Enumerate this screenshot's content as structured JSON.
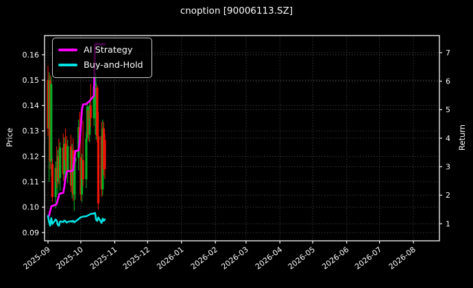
{
  "chart_data": {
    "type": "candlestick",
    "title": "cnoption [90006113.SZ]",
    "background": "#000000",
    "text_color": "#ffffff",
    "grid_color": "#3a3a3a",
    "spine_color": "#ffffff",
    "legend": {
      "position": "upper-left",
      "items": [
        {
          "label": "AI Strategy",
          "color": "#ff00ff"
        },
        {
          "label": "Buy-and-Hold",
          "color": "#00e1e1"
        }
      ]
    },
    "x_axis": {
      "start_date": "2025-09-01",
      "ticks": [
        "2025-09",
        "2025-10",
        "2025-11",
        "2025-12",
        "2026-01",
        "2026-02",
        "2026-03",
        "2026-04",
        "2026-05",
        "2026-06",
        "2026-07",
        "2026-08"
      ]
    },
    "left_axis": {
      "label": "Price",
      "ticks": [
        "0.09",
        "0.10",
        "0.11",
        "0.12",
        "0.13",
        "0.14",
        "0.15",
        "0.16"
      ],
      "range": [
        0.0868,
        0.1633
      ]
    },
    "right_axis": {
      "label": "Return",
      "ticks": [
        "1",
        "2",
        "3",
        "4",
        "5",
        "6",
        "7"
      ],
      "range": [
        0.4,
        7.6
      ]
    },
    "candles": {
      "up_color": "#00b025",
      "down_color": "#ee1509",
      "ohlc": [
        [
          "2025-09-01",
          0.15,
          0.1555,
          0.128,
          0.131
        ],
        [
          "2025-09-02",
          0.131,
          0.153,
          0.11,
          0.15
        ],
        [
          "2025-09-03",
          0.15,
          0.152,
          0.115,
          0.118
        ],
        [
          "2025-09-04",
          0.118,
          0.1515,
          0.112,
          0.1485
        ],
        [
          "2025-09-05",
          0.117,
          0.119,
          0.102,
          0.104
        ],
        [
          "2025-09-08",
          0.104,
          0.118,
          0.0995,
          0.1155
        ],
        [
          "2025-09-09",
          0.1155,
          0.124,
          0.1075,
          0.11
        ],
        [
          "2025-09-10",
          0.11,
          0.1225,
          0.105,
          0.12
        ],
        [
          "2025-09-11",
          0.12,
          0.127,
          0.109,
          0.1115
        ],
        [
          "2025-09-12",
          0.1115,
          0.1255,
          0.1065,
          0.1235
        ],
        [
          "2025-09-15",
          0.1235,
          0.129,
          0.1105,
          0.113
        ],
        [
          "2025-09-16",
          0.113,
          0.1275,
          0.108,
          0.125
        ],
        [
          "2025-09-17",
          0.125,
          0.131,
          0.116,
          0.1185
        ],
        [
          "2025-09-18",
          0.1185,
          0.128,
          0.1115,
          0.114
        ],
        [
          "2025-09-19",
          0.114,
          0.1265,
          0.1095,
          0.124
        ],
        [
          "2025-09-22",
          0.124,
          0.1285,
          0.106,
          0.1085
        ],
        [
          "2025-09-23",
          0.1085,
          0.125,
          0.1035,
          0.1225
        ],
        [
          "2025-09-24",
          0.1225,
          0.127,
          0.1025,
          0.105
        ],
        [
          "2025-09-25",
          0.105,
          0.1205,
          0.0985,
          0.118
        ],
        [
          "2025-09-26",
          0.118,
          0.122,
          0.103,
          0.1195
        ],
        [
          "2025-09-29",
          0.1195,
          0.1345,
          0.1145,
          0.1315
        ],
        [
          "2025-09-30",
          0.1315,
          0.1375,
          0.1235,
          0.126
        ],
        [
          "2025-10-01",
          0.1196,
          0.1285,
          0.1026,
          0.105
        ],
        [
          "2025-10-02",
          0.105,
          0.121,
          0.102,
          0.1185
        ],
        [
          "2025-10-03",
          0.1185,
          0.134,
          0.108,
          0.111
        ],
        [
          "2025-10-06",
          0.111,
          0.1295,
          0.1075,
          0.127
        ],
        [
          "2025-10-07",
          0.127,
          0.141,
          0.128,
          0.1395
        ],
        [
          "2025-10-08",
          0.138,
          0.1385,
          0.126,
          0.1285
        ],
        [
          "2025-10-09",
          0.1285,
          0.142,
          0.1255,
          0.14
        ],
        [
          "2025-10-10",
          0.14,
          0.1485,
          0.1315,
          0.135
        ],
        [
          "2025-10-13",
          0.135,
          0.1495,
          0.132,
          0.1475
        ],
        [
          "2025-10-14",
          0.1475,
          0.1555,
          0.14,
          0.153
        ],
        [
          "2025-10-15",
          0.1285,
          0.149,
          0.1265,
          0.147
        ],
        [
          "2025-10-16",
          0.147,
          0.148,
          0.1255,
          0.128
        ],
        [
          "2025-10-17",
          0.128,
          0.1375,
          0.099,
          0.1015
        ],
        [
          "2025-10-20",
          0.128,
          0.1335,
          0.104,
          0.107
        ],
        [
          "2025-10-21",
          0.107,
          0.1345,
          0.1045,
          0.131
        ],
        [
          "2025-10-22",
          0.131,
          0.1335,
          0.1125,
          0.115
        ],
        [
          "2025-10-23",
          0.1265,
          0.129,
          0.111,
          0.115
        ]
      ]
    },
    "series": [
      {
        "name": "AI Strategy",
        "axis": "return",
        "color": "#ff00ff",
        "width": 2.8,
        "points": [
          [
            "2025-09-01",
            1.24
          ],
          [
            "2025-09-02",
            1.28
          ],
          [
            "2025-09-03",
            1.45
          ],
          [
            "2025-09-04",
            1.6
          ],
          [
            "2025-09-05",
            1.63
          ],
          [
            "2025-09-08",
            1.66
          ],
          [
            "2025-09-09",
            1.7
          ],
          [
            "2025-09-10",
            1.85
          ],
          [
            "2025-09-11",
            2.0
          ],
          [
            "2025-09-12",
            2.06
          ],
          [
            "2025-09-15",
            2.08
          ],
          [
            "2025-09-16",
            2.3
          ],
          [
            "2025-09-17",
            2.6
          ],
          [
            "2025-09-18",
            2.8
          ],
          [
            "2025-09-19",
            2.85
          ],
          [
            "2025-09-22",
            2.84
          ],
          [
            "2025-09-23",
            2.86
          ],
          [
            "2025-09-24",
            2.88
          ],
          [
            "2025-09-25",
            3.2
          ],
          [
            "2025-09-26",
            3.55
          ],
          [
            "2025-09-29",
            3.57
          ],
          [
            "2025-09-30",
            3.9
          ],
          [
            "2025-10-01",
            4.4
          ],
          [
            "2025-10-02",
            5.0
          ],
          [
            "2025-10-03",
            5.18
          ],
          [
            "2025-10-06",
            5.2
          ],
          [
            "2025-10-07",
            5.24
          ],
          [
            "2025-10-08",
            5.27
          ],
          [
            "2025-10-09",
            5.3
          ],
          [
            "2025-10-10",
            5.35
          ],
          [
            "2025-10-13",
            5.49
          ],
          [
            "2025-10-14",
            7.3
          ],
          [
            "2025-10-15",
            7.28
          ],
          [
            "2025-10-16",
            7.32
          ],
          [
            "2025-10-17",
            7.3
          ],
          [
            "2025-10-20",
            7.28
          ],
          [
            "2025-10-21",
            7.32
          ],
          [
            "2025-10-22",
            7.3
          ],
          [
            "2025-10-23",
            7.3
          ]
        ]
      },
      {
        "name": "Buy-and-Hold",
        "axis": "return",
        "color": "#00e1e1",
        "width": 2.6,
        "points": [
          [
            "2025-09-01",
            1.27
          ],
          [
            "2025-09-02",
            1.06
          ],
          [
            "2025-09-03",
            0.93
          ],
          [
            "2025-09-04",
            1.2
          ],
          [
            "2025-09-05",
            0.99
          ],
          [
            "2025-09-08",
            1.15
          ],
          [
            "2025-09-09",
            1.1
          ],
          [
            "2025-09-10",
            0.95
          ],
          [
            "2025-09-11",
            0.93
          ],
          [
            "2025-09-12",
            1.08
          ],
          [
            "2025-09-15",
            1.06
          ],
          [
            "2025-09-16",
            1.11
          ],
          [
            "2025-09-17",
            1.09
          ],
          [
            "2025-09-18",
            1.04
          ],
          [
            "2025-09-19",
            1.06
          ],
          [
            "2025-09-22",
            1.09
          ],
          [
            "2025-09-23",
            1.07
          ],
          [
            "2025-09-24",
            1.1
          ],
          [
            "2025-09-25",
            1.05
          ],
          [
            "2025-09-26",
            1.08
          ],
          [
            "2025-09-29",
            1.16
          ],
          [
            "2025-09-30",
            1.2
          ],
          [
            "2025-10-01",
            1.22
          ],
          [
            "2025-10-02",
            1.24
          ],
          [
            "2025-10-03",
            1.25
          ],
          [
            "2025-10-06",
            1.26
          ],
          [
            "2025-10-07",
            1.28
          ],
          [
            "2025-10-08",
            1.3
          ],
          [
            "2025-10-09",
            1.32
          ],
          [
            "2025-10-10",
            1.34
          ],
          [
            "2025-10-13",
            1.36
          ],
          [
            "2025-10-14",
            1.38
          ],
          [
            "2025-10-15",
            1.14
          ],
          [
            "2025-10-16",
            1.1
          ],
          [
            "2025-10-17",
            1.22
          ],
          [
            "2025-10-20",
            1.03
          ],
          [
            "2025-10-21",
            1.18
          ],
          [
            "2025-10-22",
            1.1
          ],
          [
            "2025-10-23",
            1.15
          ]
        ]
      }
    ]
  }
}
